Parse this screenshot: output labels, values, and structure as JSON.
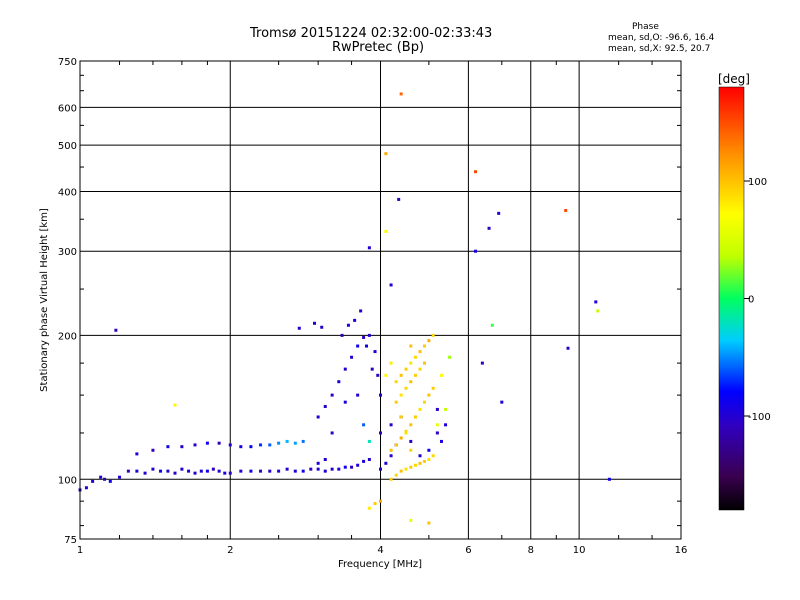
{
  "header": {
    "title_line1": "Tromsø 20151224 02:32:00-02:33:43",
    "title_line2": "RwPretec (Bp)",
    "phase_title": "Phase",
    "phase_o": "mean, sd,O: -96.6, 16.4",
    "phase_x": "mean, sd,X:  92.5, 20.7"
  },
  "colorbar": {
    "label": "[deg]",
    "ticks": [
      100,
      0,
      -100
    ],
    "range": [
      -180,
      180
    ]
  },
  "chart_data": {
    "type": "scatter",
    "title": "Tromsø 20151224 02:32:00-02:33:43",
    "subtitle": "RwPretec (Bp)",
    "xlabel": "Frequency [MHz]",
    "ylabel": "Stationary phase Virtual Height [km]",
    "xscale": "log",
    "yscale": "log",
    "xlim": [
      1,
      16
    ],
    "ylim": [
      75,
      750
    ],
    "xticks": [
      1,
      2,
      4,
      6,
      8,
      10,
      16
    ],
    "yticks": [
      75,
      100,
      200,
      300,
      400,
      500,
      600,
      750
    ],
    "grid": true,
    "color_by": "phase_deg",
    "series": [
      {
        "name": "O",
        "mean_phase": -96.6,
        "sd_phase": 16.4,
        "points": [
          [
            1.0,
            95,
            -110
          ],
          [
            1.03,
            96,
            -105
          ],
          [
            1.06,
            99,
            -100
          ],
          [
            1.1,
            101,
            -95
          ],
          [
            1.12,
            100,
            -120
          ],
          [
            1.15,
            99,
            -90
          ],
          [
            1.2,
            101,
            -100
          ],
          [
            1.25,
            104,
            -110
          ],
          [
            1.3,
            104,
            -95
          ],
          [
            1.35,
            103,
            -100
          ],
          [
            1.4,
            105,
            -105
          ],
          [
            1.45,
            104,
            -90
          ],
          [
            1.5,
            104,
            -100
          ],
          [
            1.55,
            103,
            -110
          ],
          [
            1.6,
            105,
            -100
          ],
          [
            1.65,
            104,
            -95
          ],
          [
            1.7,
            103,
            -105
          ],
          [
            1.75,
            104,
            -100
          ],
          [
            1.8,
            104,
            -90
          ],
          [
            1.85,
            105,
            -110
          ],
          [
            1.9,
            104,
            -100
          ],
          [
            1.95,
            103,
            -95
          ],
          [
            2.0,
            103,
            -105
          ],
          [
            2.1,
            104,
            -100
          ],
          [
            2.2,
            104,
            -90
          ],
          [
            2.3,
            104,
            -110
          ],
          [
            2.4,
            104,
            -100
          ],
          [
            2.5,
            104,
            -95
          ],
          [
            2.6,
            105,
            -105
          ],
          [
            2.7,
            104,
            -100
          ],
          [
            2.8,
            104,
            -90
          ],
          [
            2.9,
            105,
            -110
          ],
          [
            3.0,
            105,
            -100
          ],
          [
            3.1,
            104,
            -95
          ],
          [
            3.2,
            105,
            -105
          ],
          [
            3.3,
            105,
            -100
          ],
          [
            3.4,
            106,
            -90
          ],
          [
            3.5,
            106,
            -110
          ],
          [
            3.6,
            107,
            -100
          ],
          [
            3.7,
            109,
            -95
          ],
          [
            3.8,
            110,
            -105
          ],
          [
            1.3,
            113,
            -100
          ],
          [
            1.4,
            115,
            -110
          ],
          [
            1.5,
            117,
            -95
          ],
          [
            1.6,
            117,
            -100
          ],
          [
            1.7,
            118,
            -105
          ],
          [
            1.8,
            119,
            -90
          ],
          [
            1.9,
            119,
            -110
          ],
          [
            2.0,
            118,
            -100
          ],
          [
            2.1,
            117,
            -95
          ],
          [
            2.2,
            117,
            -80
          ],
          [
            2.3,
            118,
            -70
          ],
          [
            2.4,
            118,
            -60
          ],
          [
            2.5,
            119,
            -50
          ],
          [
            2.6,
            120,
            -40
          ],
          [
            2.7,
            119,
            -45
          ],
          [
            2.8,
            120,
            -55
          ],
          [
            3.0,
            135,
            -100
          ],
          [
            3.1,
            142,
            -105
          ],
          [
            3.2,
            150,
            -110
          ],
          [
            3.3,
            160,
            -95
          ],
          [
            3.4,
            170,
            -100
          ],
          [
            3.5,
            180,
            -105
          ],
          [
            3.6,
            190,
            -90
          ],
          [
            3.7,
            198,
            -110
          ],
          [
            3.8,
            200,
            -100
          ],
          [
            3.9,
            185,
            -95
          ],
          [
            3.95,
            165,
            -105
          ],
          [
            4.0,
            150,
            -100
          ],
          [
            3.35,
            200,
            -110
          ],
          [
            3.45,
            210,
            -100
          ],
          [
            3.55,
            215,
            -95
          ],
          [
            3.65,
            225,
            -100
          ],
          [
            3.75,
            190,
            -90
          ],
          [
            3.85,
            170,
            -110
          ],
          [
            3.6,
            150,
            -100
          ],
          [
            3.4,
            145,
            -95
          ],
          [
            3.2,
            125,
            -105
          ],
          [
            3.1,
            110,
            -100
          ],
          [
            3.0,
            108,
            -95
          ],
          [
            3.7,
            130,
            -60
          ],
          [
            3.8,
            120,
            -20
          ],
          [
            4.0,
            105,
            -100
          ],
          [
            4.1,
            108,
            -95
          ],
          [
            4.2,
            112,
            -105
          ],
          [
            4.3,
            118,
            -90
          ],
          [
            4.0,
            125,
            -110
          ],
          [
            4.2,
            130,
            -100
          ],
          [
            4.4,
            135,
            -95
          ],
          [
            4.6,
            120,
            -100
          ],
          [
            4.8,
            112,
            -105
          ],
          [
            5.0,
            115,
            -90
          ],
          [
            5.2,
            125,
            -110
          ],
          [
            5.3,
            120,
            -95
          ],
          [
            5.4,
            130,
            -100
          ],
          [
            5.2,
            140,
            -105
          ],
          [
            1.18,
            205,
            -110
          ],
          [
            2.75,
            207,
            -100
          ],
          [
            2.95,
            212,
            -95
          ],
          [
            3.05,
            208,
            -105
          ],
          [
            3.8,
            305,
            -100
          ],
          [
            4.35,
            385,
            -110
          ],
          [
            4.2,
            255,
            -100
          ],
          [
            6.2,
            300,
            -95
          ],
          [
            6.6,
            335,
            -105
          ],
          [
            6.9,
            360,
            -100
          ],
          [
            6.4,
            175,
            -110
          ],
          [
            7.0,
            145,
            -95
          ],
          [
            9.5,
            188,
            -105
          ],
          [
            10.8,
            235,
            -100
          ],
          [
            11.5,
            100,
            -90
          ]
        ]
      },
      {
        "name": "X",
        "mean_phase": 92.5,
        "sd_phase": 20.7,
        "points": [
          [
            4.2,
            100,
            95
          ],
          [
            4.3,
            102,
            90
          ],
          [
            4.4,
            104,
            100
          ],
          [
            4.5,
            105,
            85
          ],
          [
            4.6,
            106,
            95
          ],
          [
            4.7,
            107,
            90
          ],
          [
            4.8,
            108,
            100
          ],
          [
            4.9,
            109,
            95
          ],
          [
            5.0,
            110,
            85
          ],
          [
            5.1,
            112,
            90
          ],
          [
            4.2,
            115,
            100
          ],
          [
            4.3,
            118,
            95
          ],
          [
            4.4,
            122,
            110
          ],
          [
            4.5,
            126,
            90
          ],
          [
            4.6,
            130,
            100
          ],
          [
            4.7,
            135,
            95
          ],
          [
            4.8,
            140,
            85
          ],
          [
            4.9,
            145,
            90
          ],
          [
            5.0,
            150,
            100
          ],
          [
            5.1,
            155,
            95
          ],
          [
            4.3,
            160,
            90
          ],
          [
            4.4,
            165,
            100
          ],
          [
            4.5,
            170,
            95
          ],
          [
            4.6,
            175,
            85
          ],
          [
            4.7,
            180,
            90
          ],
          [
            4.8,
            185,
            100
          ],
          [
            4.9,
            190,
            95
          ],
          [
            5.0,
            195,
            110
          ],
          [
            5.1,
            200,
            90
          ],
          [
            4.6,
            190,
            100
          ],
          [
            4.3,
            145,
            95
          ],
          [
            4.4,
            150,
            85
          ],
          [
            4.5,
            155,
            90
          ],
          [
            4.6,
            160,
            100
          ],
          [
            4.7,
            165,
            95
          ],
          [
            4.8,
            170,
            90
          ],
          [
            4.9,
            175,
            100
          ],
          [
            4.4,
            135,
            95
          ],
          [
            4.5,
            125,
            85
          ],
          [
            4.6,
            115,
            90
          ],
          [
            5.2,
            130,
            60
          ],
          [
            5.4,
            140,
            40
          ],
          [
            5.5,
            180,
            30
          ],
          [
            5.3,
            165,
            70
          ],
          [
            4.1,
            165,
            75
          ],
          [
            4.2,
            175,
            80
          ],
          [
            4.4,
            640,
            140
          ],
          [
            4.1,
            480,
            110
          ],
          [
            6.2,
            440,
            150
          ],
          [
            9.4,
            365,
            150
          ],
          [
            4.1,
            330,
            70
          ],
          [
            1.55,
            143,
            75
          ],
          [
            3.8,
            87,
            80
          ],
          [
            4.0,
            90,
            110
          ],
          [
            4.6,
            82,
            60
          ],
          [
            5.0,
            81,
            100
          ],
          [
            3.9,
            89,
            95
          ],
          [
            10.9,
            225,
            40
          ],
          [
            6.7,
            210,
            10
          ]
        ]
      }
    ]
  }
}
